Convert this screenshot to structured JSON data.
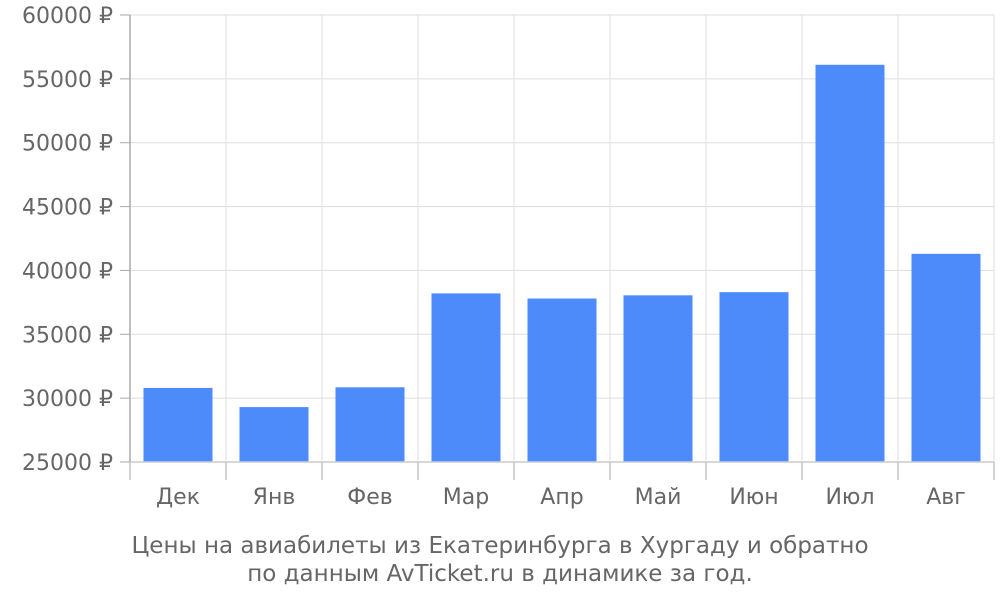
{
  "chart_data": {
    "type": "bar",
    "categories": [
      "Дек",
      "Янв",
      "Фев",
      "Мар",
      "Апр",
      "Май",
      "Июн",
      "Июл",
      "Авг"
    ],
    "values": [
      30800,
      29300,
      30850,
      38200,
      37800,
      38050,
      38300,
      56100,
      41300
    ],
    "ylim": [
      25000,
      60000
    ],
    "yticks": [
      60000,
      55000,
      50000,
      45000,
      40000,
      35000,
      30000,
      25000
    ],
    "ytick_suffix": " ₽",
    "grid": true,
    "bar_color": "#4d8bfb",
    "caption_lines": [
      "Цены на авиабилеты из Екатеринбурга в Хургаду и обратно",
      "по данным AvTicket.ru в динамике за год."
    ]
  }
}
